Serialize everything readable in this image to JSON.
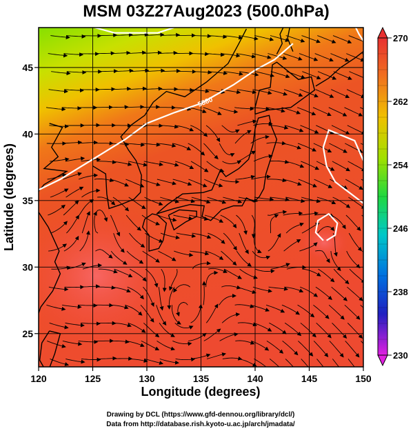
{
  "title": "MSM 03Z27Aug2023 (500.0hPa)",
  "x_axis": {
    "label": "Longitude (degrees)",
    "range": [
      120,
      150
    ],
    "ticks": [
      "120",
      "125",
      "130",
      "135",
      "140",
      "145",
      "150"
    ]
  },
  "y_axis": {
    "label": "Latitude (degrees)",
    "range": [
      22.5,
      48
    ],
    "ticks": [
      "25",
      "30",
      "35",
      "40",
      "45"
    ]
  },
  "colorbar": {
    "min": 230,
    "max": 270,
    "labels": [
      "270",
      "262",
      "254",
      "246",
      "238",
      "230"
    ]
  },
  "contour_label": "5880",
  "credits": {
    "line1": "Drawing by DCL (https://www.gfd-dennou.org/library/dcl/)",
    "line2": "Data from http://database.rish.kyoto-u.ac.jp/arch/jmadata/"
  },
  "colors": {
    "frame": "#000000",
    "contour": "#ffffff",
    "warm": "#e8402a",
    "cool": "#80e000"
  }
}
